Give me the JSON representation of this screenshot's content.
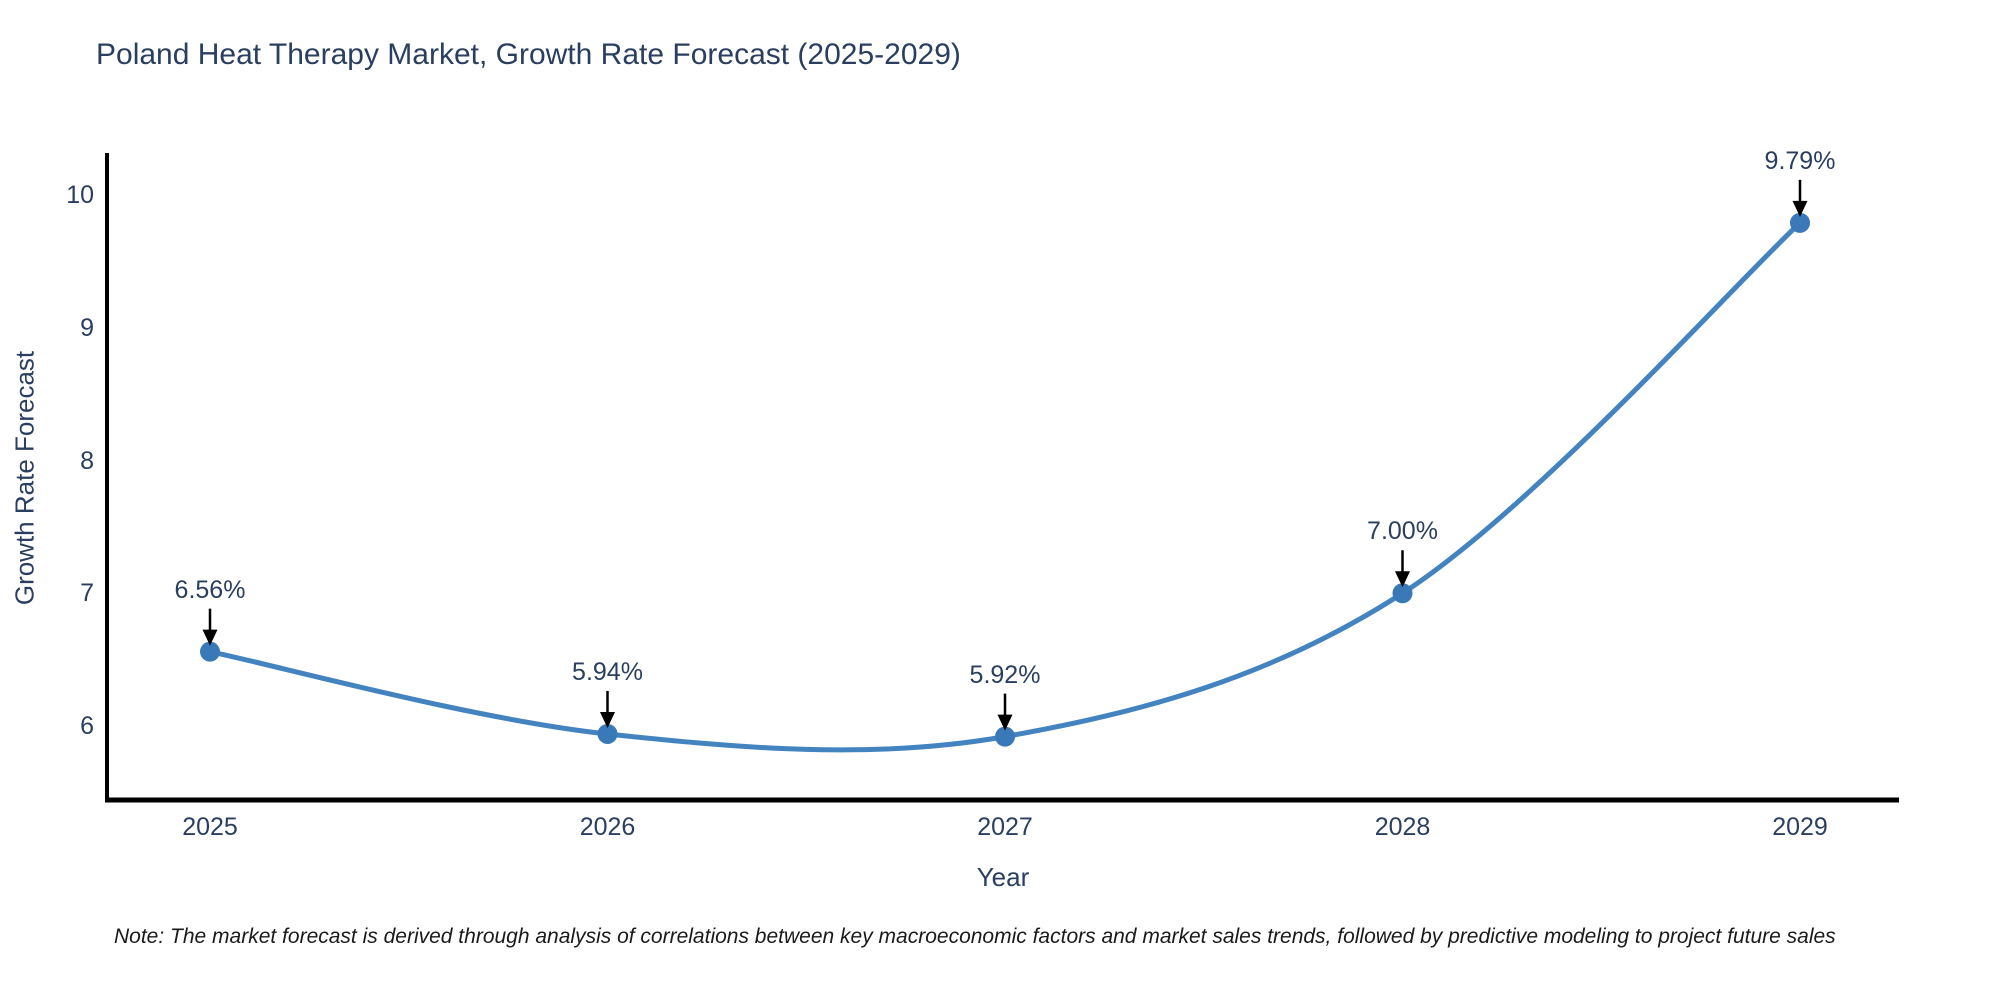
{
  "title": "Poland Heat Therapy Market, Growth Rate Forecast (2025-2029)",
  "note": "Note: The market forecast is derived through analysis of correlations between key macroeconomic factors and market sales trends, followed by predictive modeling to project future sales",
  "colors": {
    "line": "#4383c0",
    "marker": "#3a79b7",
    "axis": "#000000",
    "text": "#2a3f5f",
    "annotation_arrow": "#000000",
    "background": "#ffffff"
  },
  "chart_data": {
    "type": "line",
    "title": "Poland Heat Therapy Market, Growth Rate Forecast (2025-2029)",
    "x": [
      "2025",
      "2026",
      "2027",
      "2028",
      "2029"
    ],
    "series": [
      {
        "name": "Growth Rate Forecast",
        "values": [
          6.56,
          5.94,
          5.92,
          7.0,
          9.79
        ]
      }
    ],
    "point_labels": [
      "6.56%",
      "5.94%",
      "5.92%",
      "7.00%",
      "9.79%"
    ],
    "xlabel": "Year",
    "ylabel": "Growth Rate Forecast",
    "yticks": [
      6,
      7,
      8,
      9,
      10
    ],
    "ylim": [
      5.42,
      10.3
    ],
    "line_shape": "spline",
    "grid": false,
    "legend_position": "none"
  }
}
